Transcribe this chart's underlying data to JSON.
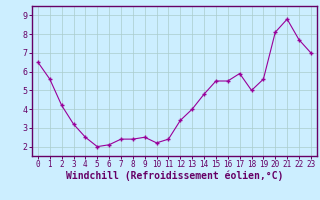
{
  "x": [
    0,
    1,
    2,
    3,
    4,
    5,
    6,
    7,
    8,
    9,
    10,
    11,
    12,
    13,
    14,
    15,
    16,
    17,
    18,
    19,
    20,
    21,
    22,
    23
  ],
  "y": [
    6.5,
    5.6,
    4.2,
    3.2,
    2.5,
    2.0,
    2.1,
    2.4,
    2.4,
    2.5,
    2.2,
    2.4,
    3.4,
    4.0,
    4.8,
    5.5,
    5.5,
    5.9,
    5.0,
    5.6,
    8.1,
    8.8,
    7.7,
    7.0
  ],
  "line_color": "#990099",
  "marker": "+",
  "marker_size": 3,
  "marker_linewidth": 1.0,
  "bg_color": "#cceeff",
  "grid_color": "#aacccc",
  "xlabel": "Windchill (Refroidissement éolien,°C)",
  "xlabel_fontsize": 7,
  "xlabel_fontweight": "bold",
  "ytick_labels": [
    "2",
    "3",
    "4",
    "5",
    "6",
    "7",
    "8",
    "9"
  ],
  "ytick_values": [
    2,
    3,
    4,
    5,
    6,
    7,
    8,
    9
  ],
  "ylim": [
    1.5,
    9.5
  ],
  "xlim": [
    -0.5,
    23.5
  ],
  "xtick_values": [
    0,
    1,
    2,
    3,
    4,
    5,
    6,
    7,
    8,
    9,
    10,
    11,
    12,
    13,
    14,
    15,
    16,
    17,
    18,
    19,
    20,
    21,
    22,
    23
  ],
  "xtick_fontsize": 5.5,
  "ytick_fontsize": 6.0,
  "spine_color": "#660066",
  "label_color": "#660066",
  "tick_color": "#660066",
  "line_width": 0.8
}
